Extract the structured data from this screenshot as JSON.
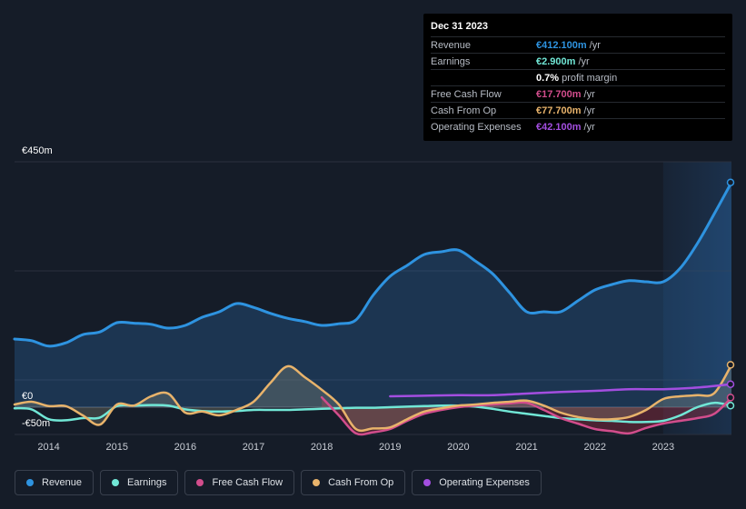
{
  "colors": {
    "revenue": "#2e93e0",
    "earnings": "#71e7d6",
    "free_cash_flow": "#d24d8c",
    "cash_from_op": "#e8b36b",
    "operating_expenses": "#a34ee0"
  },
  "tooltip": {
    "date": "Dec 31 2023",
    "rows": [
      {
        "label": "Revenue",
        "value": "€412.100m",
        "unit": "/yr",
        "color": "#2e93e0"
      },
      {
        "label": "Earnings",
        "value": "€2.900m",
        "unit": "/yr",
        "color": "#71e7d6"
      },
      {
        "label": "",
        "value": "0.7%",
        "unit": "profit margin",
        "color": "#ffffff"
      },
      {
        "label": "Free Cash Flow",
        "value": "€17.700m",
        "unit": "/yr",
        "color": "#d24d8c"
      },
      {
        "label": "Cash From Op",
        "value": "€77.700m",
        "unit": "/yr",
        "color": "#e8b36b"
      },
      {
        "label": "Operating Expenses",
        "value": "€42.100m",
        "unit": "/yr",
        "color": "#a34ee0"
      }
    ]
  },
  "legend": [
    {
      "label": "Revenue",
      "color": "#2e93e0"
    },
    {
      "label": "Earnings",
      "color": "#71e7d6"
    },
    {
      "label": "Free Cash Flow",
      "color": "#d24d8c"
    },
    {
      "label": "Cash From Op",
      "color": "#e8b36b"
    },
    {
      "label": "Operating Expenses",
      "color": "#a34ee0"
    }
  ],
  "chart_data": {
    "type": "line",
    "title": "",
    "xlabel": "",
    "ylabel": "",
    "y_tick_labels": [
      "€450m",
      "€0",
      "-€50m"
    ],
    "ylim": [
      -50,
      450
    ],
    "xlim": [
      2013.5,
      2024.0
    ],
    "x_ticks": [
      2014,
      2015,
      2016,
      2017,
      2018,
      2019,
      2020,
      2021,
      2022,
      2023
    ],
    "x_tick_labels": [
      "2014",
      "2015",
      "2016",
      "2017",
      "2018",
      "2019",
      "2020",
      "2021",
      "2022",
      "2023"
    ],
    "highlight_from": 2023.0,
    "series": [
      {
        "name": "Revenue",
        "key": "revenue",
        "fill": true,
        "points": [
          [
            2013.5,
            125
          ],
          [
            2013.75,
            122
          ],
          [
            2014.0,
            112
          ],
          [
            2014.25,
            118
          ],
          [
            2014.5,
            133
          ],
          [
            2014.75,
            138
          ],
          [
            2015.0,
            155
          ],
          [
            2015.25,
            154
          ],
          [
            2015.5,
            152
          ],
          [
            2015.75,
            145
          ],
          [
            2016.0,
            150
          ],
          [
            2016.25,
            165
          ],
          [
            2016.5,
            175
          ],
          [
            2016.75,
            190
          ],
          [
            2017.0,
            183
          ],
          [
            2017.25,
            172
          ],
          [
            2017.5,
            163
          ],
          [
            2017.75,
            157
          ],
          [
            2018.0,
            150
          ],
          [
            2018.25,
            153
          ],
          [
            2018.5,
            160
          ],
          [
            2018.75,
            205
          ],
          [
            2019.0,
            240
          ],
          [
            2019.25,
            260
          ],
          [
            2019.5,
            280
          ],
          [
            2019.75,
            285
          ],
          [
            2020.0,
            288
          ],
          [
            2020.25,
            268
          ],
          [
            2020.5,
            245
          ],
          [
            2020.75,
            210
          ],
          [
            2021.0,
            175
          ],
          [
            2021.25,
            175
          ],
          [
            2021.5,
            175
          ],
          [
            2021.75,
            195
          ],
          [
            2022.0,
            215
          ],
          [
            2022.25,
            225
          ],
          [
            2022.5,
            232
          ],
          [
            2022.75,
            230
          ],
          [
            2023.0,
            230
          ],
          [
            2023.25,
            255
          ],
          [
            2023.5,
            300
          ],
          [
            2023.75,
            355
          ],
          [
            2024.0,
            412.1
          ]
        ]
      },
      {
        "name": "Earnings",
        "key": "earnings",
        "fill": false,
        "points": [
          [
            2013.5,
            -2
          ],
          [
            2013.75,
            -4
          ],
          [
            2014.0,
            -22
          ],
          [
            2014.25,
            -24
          ],
          [
            2014.5,
            -20
          ],
          [
            2014.75,
            -19
          ],
          [
            2015.0,
            2
          ],
          [
            2015.25,
            3
          ],
          [
            2015.5,
            4
          ],
          [
            2015.75,
            3
          ],
          [
            2016.0,
            -4
          ],
          [
            2016.25,
            -7
          ],
          [
            2016.5,
            -8
          ],
          [
            2016.75,
            -7
          ],
          [
            2017.0,
            -5
          ],
          [
            2017.25,
            -5
          ],
          [
            2017.5,
            -5
          ],
          [
            2017.75,
            -4
          ],
          [
            2018.0,
            -3
          ],
          [
            2018.25,
            -2
          ],
          [
            2018.5,
            -1
          ],
          [
            2018.75,
            -1
          ],
          [
            2019.0,
            0
          ],
          [
            2019.25,
            1
          ],
          [
            2019.5,
            2
          ],
          [
            2019.75,
            3
          ],
          [
            2020.0,
            3
          ],
          [
            2020.25,
            1
          ],
          [
            2020.5,
            -3
          ],
          [
            2020.75,
            -8
          ],
          [
            2021.0,
            -12
          ],
          [
            2021.25,
            -16
          ],
          [
            2021.5,
            -20
          ],
          [
            2021.75,
            -22
          ],
          [
            2022.0,
            -24
          ],
          [
            2022.25,
            -25
          ],
          [
            2022.5,
            -27
          ],
          [
            2022.75,
            -27
          ],
          [
            2023.0,
            -25
          ],
          [
            2023.25,
            -15
          ],
          [
            2023.5,
            0
          ],
          [
            2023.75,
            8
          ],
          [
            2024.0,
            2.9
          ]
        ]
      },
      {
        "name": "Free Cash Flow",
        "key": "free_cash_flow",
        "fill": true,
        "points": [
          [
            2018.0,
            18
          ],
          [
            2018.25,
            -15
          ],
          [
            2018.5,
            -48
          ],
          [
            2018.75,
            -46
          ],
          [
            2019.0,
            -40
          ],
          [
            2019.25,
            -25
          ],
          [
            2019.5,
            -12
          ],
          [
            2019.75,
            -5
          ],
          [
            2020.0,
            0
          ],
          [
            2020.25,
            3
          ],
          [
            2020.5,
            5
          ],
          [
            2020.75,
            7
          ],
          [
            2021.0,
            8
          ],
          [
            2021.25,
            -5
          ],
          [
            2021.5,
            -20
          ],
          [
            2021.75,
            -30
          ],
          [
            2022.0,
            -40
          ],
          [
            2022.25,
            -44
          ],
          [
            2022.5,
            -48
          ],
          [
            2022.75,
            -38
          ],
          [
            2023.0,
            -30
          ],
          [
            2023.25,
            -25
          ],
          [
            2023.5,
            -20
          ],
          [
            2023.75,
            -12
          ],
          [
            2024.0,
            17.7
          ]
        ]
      },
      {
        "name": "Cash From Op",
        "key": "cash_from_op",
        "fill": true,
        "points": [
          [
            2013.5,
            5
          ],
          [
            2013.75,
            10
          ],
          [
            2014.0,
            2
          ],
          [
            2014.25,
            2
          ],
          [
            2014.5,
            -15
          ],
          [
            2014.75,
            -32
          ],
          [
            2015.0,
            5
          ],
          [
            2015.25,
            3
          ],
          [
            2015.5,
            20
          ],
          [
            2015.75,
            25
          ],
          [
            2016.0,
            -10
          ],
          [
            2016.25,
            -8
          ],
          [
            2016.5,
            -15
          ],
          [
            2016.75,
            -5
          ],
          [
            2017.0,
            10
          ],
          [
            2017.25,
            45
          ],
          [
            2017.5,
            75
          ],
          [
            2017.75,
            55
          ],
          [
            2018.0,
            32
          ],
          [
            2018.25,
            5
          ],
          [
            2018.5,
            -40
          ],
          [
            2018.75,
            -39
          ],
          [
            2019.0,
            -37
          ],
          [
            2019.25,
            -22
          ],
          [
            2019.5,
            -8
          ],
          [
            2019.75,
            -2
          ],
          [
            2020.0,
            3
          ],
          [
            2020.25,
            5
          ],
          [
            2020.5,
            8
          ],
          [
            2020.75,
            10
          ],
          [
            2021.0,
            12
          ],
          [
            2021.25,
            3
          ],
          [
            2021.5,
            -10
          ],
          [
            2021.75,
            -18
          ],
          [
            2022.0,
            -22
          ],
          [
            2022.25,
            -22
          ],
          [
            2022.5,
            -18
          ],
          [
            2022.75,
            -5
          ],
          [
            2023.0,
            15
          ],
          [
            2023.25,
            20
          ],
          [
            2023.5,
            22
          ],
          [
            2023.75,
            26
          ],
          [
            2024.0,
            77.7
          ]
        ]
      },
      {
        "name": "Operating Expenses",
        "key": "operating_expenses",
        "fill": false,
        "points": [
          [
            2019.0,
            20
          ],
          [
            2019.5,
            21
          ],
          [
            2020.0,
            22
          ],
          [
            2020.5,
            22
          ],
          [
            2021.0,
            25
          ],
          [
            2021.5,
            28
          ],
          [
            2022.0,
            30
          ],
          [
            2022.5,
            33
          ],
          [
            2023.0,
            33
          ],
          [
            2023.5,
            36
          ],
          [
            2024.0,
            42.1
          ]
        ]
      }
    ]
  }
}
